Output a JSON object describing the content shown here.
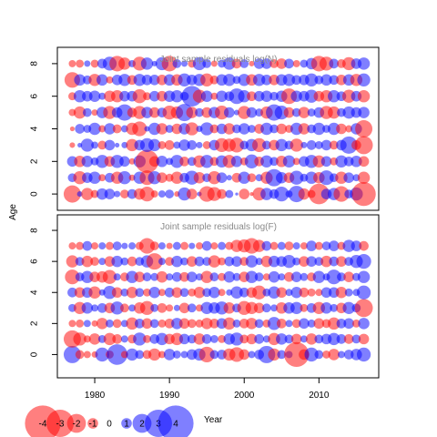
{
  "chart_data": {
    "type": "scatter",
    "xlabel": "Year",
    "ylabel": "Age",
    "xlim": [
      1975,
      2018
    ],
    "x_ticks": [
      1980,
      1990,
      2000,
      2010
    ],
    "y_ticks": [
      0,
      2,
      4,
      6,
      8
    ],
    "colors": {
      "positive": "#0000ff",
      "negative": "#ff0000"
    },
    "opacity": 0.5,
    "years": [
      1977,
      1978,
      1979,
      1980,
      1981,
      1982,
      1983,
      1984,
      1985,
      1986,
      1987,
      1988,
      1989,
      1990,
      1991,
      1992,
      1993,
      1994,
      1995,
      1996,
      1997,
      1998,
      1999,
      2000,
      2001,
      2002,
      2003,
      2004,
      2005,
      2006,
      2007,
      2008,
      2009,
      2010,
      2011,
      2012,
      2013,
      2014,
      2015,
      2016
    ],
    "legend": {
      "values": [
        -4,
        -3,
        -2,
        -1,
        0,
        1,
        2,
        3,
        4
      ],
      "labels": [
        "-4",
        "-3",
        "-2",
        "-1",
        "0",
        "1",
        "2",
        "3",
        "4"
      ]
    },
    "panels": [
      {
        "title": "Joint sample residuals log(N)",
        "ylim": [
          -1,
          9
        ],
        "ages": [
          0,
          1,
          2,
          3,
          4,
          5,
          6,
          7,
          8
        ],
        "residuals": [
          [
            -1.8,
            0.4,
            -1.2,
            -0.7,
            1.1,
            1.0,
            0.5,
            -0.8,
            0.9,
            -1.1,
            -1.5,
            -0.6,
            0.6,
            0.8,
            -0.4,
            1.3,
            -1.0,
            0.3,
            -1.6,
            -1.4,
            -0.9,
            0.7,
            0.1,
            -1.0,
            -0.2,
            -1.3,
            1.2,
            0.9,
            1.5,
            0.6,
            1.7,
            -1.1,
            -0.7,
            -2.2,
            1.0,
            1.2,
            -1.6,
            0.8,
            1.3,
            -2.6
          ],
          [
            0.8,
            -1.3,
            1.0,
            1.2,
            -0.6,
            0.9,
            -1.2,
            1.3,
            -0.5,
            1.2,
            -1.5,
            1.3,
            -1.0,
            -0.7,
            -1.2,
            0.9,
            1.4,
            -1.1,
            0.8,
            -1.3,
            1.0,
            0.4,
            -0.9,
            1.2,
            -0.8,
            0.6,
            -1.2,
            1.8,
            1.1,
            -1.0,
            1.4,
            0.7,
            1.2,
            -1.1,
            1.5,
            0.8,
            -1.2,
            1.0,
            0.6,
            -1.2
          ],
          [
            1.0,
            -1.1,
            1.1,
            0.7,
            1.3,
            -1.0,
            1.3,
            1.0,
            -0.5,
            1.2,
            -2.5,
            -1.0,
            1.1,
            0.6,
            1.3,
            -0.9,
            0.8,
            -1.2,
            1.3,
            -0.8,
            1.2,
            -1.3,
            1.1,
            -0.7,
            1.4,
            -0.9,
            1.2,
            0.8,
            -1.1,
            1.2,
            -0.6,
            1.0,
            1.3,
            -1.2,
            1.0,
            -0.7,
            1.2,
            0.9,
            1.1,
            -1.0
          ],
          [
            -0.4,
            0.3,
            1.3,
            0.6,
            -0.8,
            1.0,
            0.3,
            0.5,
            -1.2,
            1.0,
            1.4,
            1.2,
            -0.7,
            -0.9,
            0.6,
            1.1,
            0.9,
            0.5,
            -0.7,
            1.0,
            -1.4,
            -1.3,
            -1.5,
            0.8,
            1.2,
            -1.4,
            0.8,
            -1.0,
            1.2,
            0.8,
            -1.3,
            0.5,
            0.9,
            0.7,
            1.0,
            -0.8,
            1.0,
            1.8,
            -0.9,
            -1.9
          ],
          [
            -0.3,
            0.9,
            0.7,
            1.2,
            -0.6,
            1.1,
            -0.8,
            0.6,
            -1.2,
            -1.5,
            0.4,
            1.2,
            -1.1,
            0.7,
            -1.0,
            1.1,
            -1.3,
            0.5,
            1.3,
            -0.8,
            1.0,
            -1.1,
            0.8,
            1.1,
            0.7,
            -0.9,
            1.2,
            0.8,
            -1.0,
            -0.7,
            1.2,
            -1.1,
            0.8,
            1.2,
            0.7,
            1.2,
            -1.0,
            -0.6,
            1.1,
            -1.8
          ],
          [
            -0.6,
            -1.2,
            0.8,
            -0.5,
            1.1,
            -1.3,
            1.0,
            1.7,
            -0.9,
            -1.3,
            1.1,
            -1.0,
            0.9,
            -1.4,
            -1.2,
            1.8,
            -1.1,
            0.8,
            -1.0,
            1.1,
            -1.4,
            1.0,
            0.4,
            -1.3,
            1.0,
            0.7,
            -1.2,
            1.7,
            1.4,
            -1.0,
            0.8,
            -1.1,
            0.7,
            1.0,
            -1.3,
            -1.2,
            0.8,
            1.2,
            1.0,
            1.1
          ],
          [
            -0.7,
            1.2,
            1.0,
            1.1,
            0.6,
            -1.1,
            -1.2,
            1.0,
            1.0,
            -1.4,
            -0.7,
            1.0,
            -1.0,
            1.1,
            1.2,
            0.8,
            2.2,
            -1.3,
            1.1,
            -0.6,
            1.1,
            0.9,
            1.6,
            1.2,
            -0.9,
            1.0,
            1.1,
            0.8,
            1.1,
            -1.6,
            1.1,
            1.0,
            1.3,
            -1.0,
            -1.2,
            1.2,
            0.9,
            -1.3,
            1.0,
            -1.2
          ],
          [
            -1.6,
            1.1,
            0.8,
            -1.2,
            1.1,
            -0.6,
            1.0,
            1.2,
            -0.9,
            1.2,
            1.0,
            1.0,
            -1.0,
            1.1,
            -1.1,
            1.3,
            1.0,
            1.2,
            -1.3,
            -0.8,
            1.1,
            1.2,
            0.7,
            1.2,
            -1.1,
            1.2,
            1.0,
            -1.0,
            1.1,
            1.2,
            0.9,
            1.0,
            1.3,
            0.8,
            1.1,
            0.9,
            -1.0,
            1.1,
            -1.2,
            1.3
          ],
          [
            -0.6,
            -0.7,
            0.5,
            -0.7,
            0.9,
            1.4,
            -1.6,
            -1.2,
            0.6,
            -1.4,
            1.2,
            0.4,
            1.3,
            -1.6,
            0.8,
            0.5,
            -0.7,
            1.3,
            0.8,
            -0.5,
            0.7,
            1.2,
            -0.9,
            0.8,
            -0.4,
            1.0,
            1.0,
            -0.8,
            -1.0,
            0.9,
            -0.6,
            0.7,
            1.1,
            -1.6,
            -1.4,
            0.9,
            -0.8,
            -1.3,
            1.0,
            1.2
          ]
        ]
      },
      {
        "title": "Joint sample residuals log(F)",
        "ylim": [
          -1.5,
          9
        ],
        "ages": [
          0,
          1,
          2,
          3,
          4,
          5,
          6,
          7
        ],
        "residuals": [
          [
            1.8,
            -0.8,
            -0.6,
            -0.5,
            1.4,
            -0.7,
            2.2,
            -0.6,
            1.2,
            0.8,
            -0.8,
            -1.2,
            -0.6,
            1.1,
            0.7,
            0.6,
            1.0,
            1.2,
            -1.6,
            0.8,
            0.9,
            -1.2,
            -1.5,
            -1.0,
            0.6,
            0.9,
            1.8,
            -1.2,
            0.8,
            0.6,
            -2.7,
            -1.0,
            1.4,
            0.8,
            -0.7,
            -1.1,
            0.6,
            0.9,
            1.1,
            1.4
          ],
          [
            -1.8,
            -1.3,
            -0.6,
            -1.1,
            0.7,
            -1.2,
            -0.9,
            0.6,
            -0.8,
            1.3,
            -0.7,
            0.9,
            1.2,
            -1.0,
            -1.2,
            1.0,
            0.8,
            -1.1,
            0.9,
            0.7,
            -0.7,
            1.1,
            1.3,
            -0.8,
            -1.0,
            0.9,
            0.6,
            -1.2,
            1.1,
            0.8,
            -1.0,
            0.6,
            -1.1,
            0.8,
            1.0,
            1.2,
            0.9,
            -0.9,
            0.8,
            -1.0
          ],
          [
            -0.6,
            -0.7,
            0.6,
            -0.5,
            -1.1,
            0.7,
            -0.8,
            0.6,
            -1.2,
            0.9,
            -1.0,
            0.8,
            -0.7,
            -0.9,
            1.1,
            -1.0,
            -0.8,
            -0.7,
            -1.1,
            -0.9,
            1.0,
            -1.2,
            0.7,
            -0.9,
            -1.1,
            0.8,
            -0.7,
            1.3,
            -0.9,
            0.6,
            -0.8,
            1.0,
            0.7,
            -1.0,
            -0.8,
            -1.2,
            0.9,
            1.0,
            -0.7,
            1.1
          ],
          [
            0.7,
            -1.2,
            1.1,
            0.6,
            0.9,
            -1.0,
            1.3,
            -0.8,
            0.6,
            -1.1,
            -1.4,
            0.7,
            -0.9,
            -0.6,
            0.5,
            -1.0,
            0.8,
            -0.6,
            1.2,
            1.1,
            1.3,
            -1.1,
            0.8,
            -1.4,
            -1.2,
            -1.0,
            0.8,
            0.6,
            -1.1,
            1.1,
            1.2,
            -0.7,
            0.9,
            -1.2,
            1.1,
            0.7,
            -1.0,
            1.2,
            0.8,
            -1.9
          ],
          [
            0.9,
            -1.0,
            1.0,
            -1.2,
            0.5,
            1.3,
            -1.0,
            0.7,
            -1.1,
            0.8,
            -0.7,
            1.1,
            -0.6,
            0.9,
            -1.0,
            0.8,
            -0.7,
            -1.1,
            0.8,
            1.1,
            -0.6,
            0.5,
            1.2,
            0.9,
            -1.0,
            -1.4,
            0.7,
            1.2,
            -1.0,
            0.6,
            1.1,
            -0.9,
            -0.7,
            -0.6,
            1.0,
            1.0,
            -1.1,
            0.7,
            0.6,
            1.4
          ],
          [
            -1.5,
            0.8,
            1.2,
            -1.0,
            -1.1,
            -1.4,
            0.6,
            -0.8,
            1.2,
            -1.0,
            0.8,
            0.7,
            -1.1,
            0.6,
            0.9,
            -0.9,
            1.0,
            0.6,
            -1.2,
            0.8,
            -0.7,
            1.1,
            0.7,
            -1.0,
            1.2,
            0.8,
            -0.6,
            1.1,
            0.6,
            -0.9,
            1.0,
            0.7,
            -0.8,
            1.2,
            0.6,
            1.5,
            0.8,
            -1.0,
            0.7,
            1.2
          ],
          [
            -1.2,
            0.8,
            -1.1,
            -0.8,
            0.6,
            -1.0,
            1.1,
            0.7,
            -0.9,
            0.8,
            1.2,
            -1.7,
            0.6,
            -0.8,
            1.1,
            0.7,
            -1.0,
            0.9,
            0.8,
            -1.2,
            -0.7,
            0.9,
            1.0,
            -0.8,
            1.2,
            0.6,
            -1.1,
            1.1,
            1.0,
            1.3,
            0.7,
            -1.0,
            1.0,
            0.8,
            -1.1,
            0.9,
            -1.0,
            0.8,
            1.3,
            1.5
          ],
          [
            -0.6,
            -0.7,
            0.9,
            -0.6,
            0.6,
            -0.7,
            0.8,
            0.5,
            0.6,
            -0.7,
            -1.6,
            -0.8,
            0.6,
            -0.5,
            0.7,
            -0.7,
            0.5,
            -0.6,
            0.9,
            -0.6,
            0.7,
            -0.7,
            -1.2,
            -1.3,
            -1.6,
            -1.2,
            0.9,
            -0.7,
            0.7,
            -0.8,
            0.6,
            -0.6,
            1.0,
            -0.7,
            0.8,
            1.0,
            -0.7,
            1.2,
            1.0,
            -0.9
          ]
        ]
      }
    ]
  }
}
